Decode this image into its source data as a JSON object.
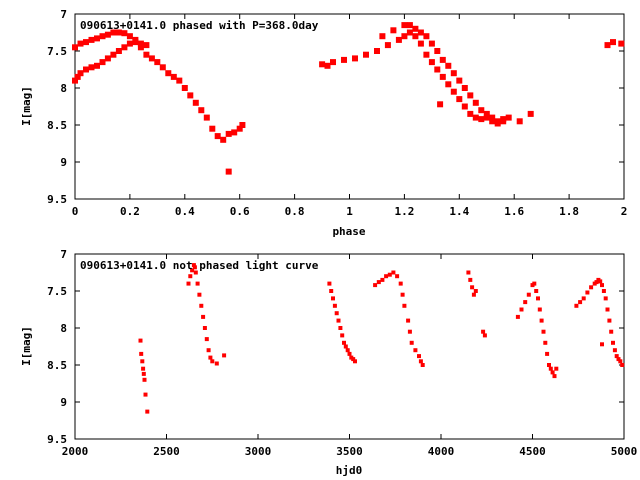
{
  "chart_data": [
    {
      "type": "scatter",
      "title": "090613+0141.0 phased with P=368.0day",
      "xlabel": "phase",
      "ylabel": "I[mag]",
      "xlim": [
        0,
        2
      ],
      "ylim": [
        7,
        9.5
      ],
      "y_inverted": true,
      "xticks": [
        "0",
        "0.2",
        "0.4",
        "0.6",
        "0.8",
        "1",
        "1.2",
        "1.4",
        "1.6",
        "1.8",
        "2"
      ],
      "yticks": [
        "7",
        "7.5",
        "8",
        "8.5",
        "9",
        "9.5"
      ],
      "marker_color": "#ff0000",
      "series": [
        {
          "x": [
            0.0,
            0.01,
            0.02,
            0.04,
            0.06,
            0.08,
            0.1,
            0.12,
            0.14,
            0.16,
            0.18,
            0.2,
            0.22,
            0.24,
            0.26,
            0.28,
            0.3,
            0.32,
            0.34,
            0.36,
            0.38,
            0.4,
            0.42,
            0.44,
            0.46,
            0.48,
            0.5,
            0.52,
            0.54,
            0.56,
            0.58,
            0.6,
            0.61,
            0.56,
            0.0,
            0.02,
            0.04,
            0.06,
            0.08,
            0.1,
            0.12,
            0.14,
            0.16,
            0.18,
            0.2,
            0.22,
            0.24,
            0.26,
            0.9,
            0.92,
            0.94,
            0.98,
            1.02,
            1.06,
            1.1,
            1.14,
            1.18,
            1.2,
            1.22,
            1.24,
            1.26,
            1.28,
            1.3,
            1.32,
            1.34,
            1.36,
            1.38,
            1.4,
            1.42,
            1.44,
            1.46,
            1.48,
            1.5,
            1.52,
            1.54,
            1.56,
            1.58,
            1.12,
            1.16,
            1.2,
            1.22,
            1.24,
            1.26,
            1.28,
            1.3,
            1.32,
            1.34,
            1.36,
            1.38,
            1.4,
            1.42,
            1.44,
            1.46,
            1.48,
            1.5,
            1.52,
            1.54,
            1.56,
            1.62,
            1.66,
            1.33,
            1.94,
            1.96,
            1.99
          ],
          "y": [
            7.9,
            7.85,
            7.8,
            7.75,
            7.72,
            7.7,
            7.65,
            7.6,
            7.55,
            7.5,
            7.45,
            7.4,
            7.38,
            7.45,
            7.55,
            7.6,
            7.65,
            7.72,
            7.8,
            7.85,
            7.9,
            8.0,
            8.1,
            8.2,
            8.3,
            8.4,
            8.55,
            8.65,
            8.7,
            8.62,
            8.6,
            8.55,
            8.5,
            9.13,
            7.45,
            7.4,
            7.38,
            7.35,
            7.33,
            7.3,
            7.28,
            7.25,
            7.25,
            7.26,
            7.3,
            7.35,
            7.4,
            7.42,
            7.68,
            7.7,
            7.65,
            7.62,
            7.6,
            7.55,
            7.5,
            7.42,
            7.35,
            7.3,
            7.25,
            7.3,
            7.4,
            7.55,
            7.65,
            7.75,
            7.85,
            7.95,
            8.05,
            8.15,
            8.25,
            8.35,
            8.4,
            8.42,
            8.4,
            8.45,
            8.48,
            8.45,
            8.4,
            7.3,
            7.22,
            7.15,
            7.15,
            7.2,
            7.25,
            7.3,
            7.4,
            7.5,
            7.62,
            7.7,
            7.8,
            7.9,
            8.0,
            8.1,
            8.2,
            8.3,
            8.35,
            8.4,
            8.45,
            8.42,
            8.45,
            8.35,
            8.22,
            7.42,
            7.38,
            7.4
          ]
        }
      ]
    },
    {
      "type": "scatter",
      "title": "090613+0141.0 not phased light curve",
      "xlabel": "hjd0",
      "ylabel": "I[mag]",
      "xlim": [
        2000,
        5000
      ],
      "ylim": [
        7,
        9.5
      ],
      "y_inverted": true,
      "xticks": [
        "2000",
        "2500",
        "3000",
        "3500",
        "4000",
        "4500",
        "5000"
      ],
      "yticks": [
        "7",
        "7.5",
        "8",
        "8.5",
        "9",
        "9.5"
      ],
      "marker_color": "#ff0000",
      "series": [
        {
          "x": [
            2358,
            2362,
            2368,
            2372,
            2376,
            2380,
            2385,
            2395,
            2620,
            2630,
            2640,
            2650,
            2655,
            2660,
            2670,
            2680,
            2690,
            2700,
            2710,
            2720,
            2730,
            2740,
            2750,
            2775,
            2815,
            3390,
            3400,
            3410,
            3420,
            3430,
            3440,
            3450,
            3460,
            3470,
            3480,
            3490,
            3500,
            3510,
            3520,
            3530,
            3640,
            3660,
            3680,
            3700,
            3720,
            3740,
            3760,
            3780,
            3790,
            3800,
            3820,
            3830,
            3840,
            3860,
            3880,
            3890,
            3900,
            4150,
            4160,
            4170,
            4180,
            4190,
            4230,
            4240,
            4420,
            4440,
            4460,
            4480,
            4500,
            4510,
            4520,
            4530,
            4540,
            4550,
            4560,
            4570,
            4580,
            4590,
            4600,
            4610,
            4620,
            4630,
            4740,
            4760,
            4780,
            4800,
            4820,
            4840,
            4850,
            4860,
            4870,
            4880,
            4890,
            4900,
            4910,
            4920,
            4930,
            4940,
            4950,
            4960,
            4970,
            4980,
            4990,
            4880
          ],
          "y": [
            8.17,
            8.35,
            8.45,
            8.55,
            8.62,
            8.7,
            8.9,
            9.13,
            7.4,
            7.3,
            7.22,
            7.15,
            7.18,
            7.25,
            7.4,
            7.55,
            7.7,
            7.85,
            8.0,
            8.15,
            8.3,
            8.4,
            8.45,
            8.48,
            8.37,
            7.4,
            7.5,
            7.6,
            7.7,
            7.8,
            7.9,
            8.0,
            8.1,
            8.2,
            8.25,
            8.3,
            8.35,
            8.4,
            8.42,
            8.45,
            7.42,
            7.38,
            7.35,
            7.3,
            7.28,
            7.25,
            7.3,
            7.4,
            7.55,
            7.7,
            7.9,
            8.05,
            8.2,
            8.3,
            8.38,
            8.45,
            8.5,
            7.25,
            7.35,
            7.45,
            7.55,
            7.5,
            8.05,
            8.1,
            7.85,
            7.75,
            7.65,
            7.55,
            7.42,
            7.4,
            7.5,
            7.6,
            7.75,
            7.9,
            8.05,
            8.2,
            8.35,
            8.5,
            8.55,
            8.6,
            8.65,
            8.55,
            7.7,
            7.65,
            7.6,
            7.52,
            7.45,
            7.4,
            7.38,
            7.35,
            7.37,
            7.42,
            7.5,
            7.6,
            7.75,
            7.9,
            8.05,
            8.2,
            8.3,
            8.38,
            8.42,
            8.45,
            8.5,
            8.22
          ]
        }
      ]
    }
  ]
}
